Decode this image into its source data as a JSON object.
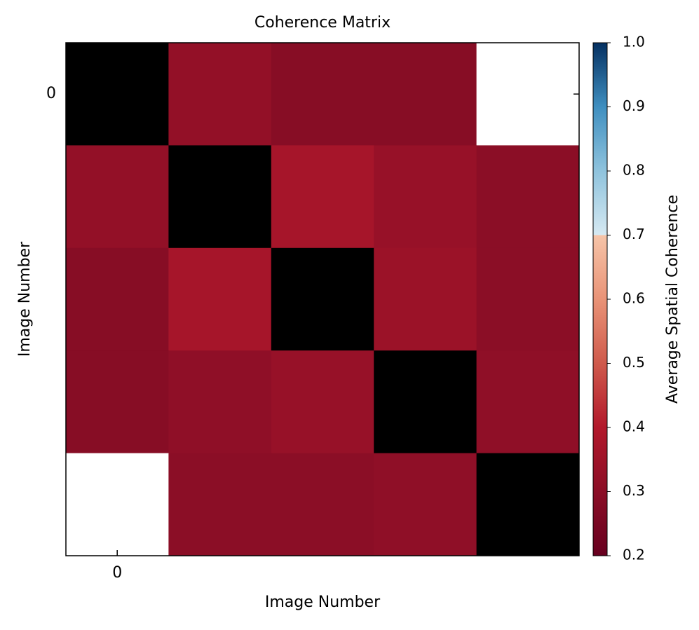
{
  "chart_data": {
    "type": "heatmap",
    "title": "Coherence Matrix",
    "x_label": "Image Number",
    "y_label": "Image Number",
    "colorbar_label": "Average Spatial Coherence",
    "values": [
      [
        null,
        0.32,
        0.29,
        0.29,
        null
      ],
      [
        0.32,
        null,
        0.37,
        0.33,
        0.3
      ],
      [
        0.29,
        0.37,
        null,
        0.34,
        0.3
      ],
      [
        0.29,
        0.31,
        0.33,
        null,
        0.31
      ],
      [
        null,
        0.3,
        0.3,
        0.31,
        null
      ]
    ],
    "xlim": [
      -0.5,
      4.5
    ],
    "ylim": [
      4.5,
      -0.5
    ],
    "xticks": [
      0
    ],
    "yticks": [
      0
    ],
    "clim": [
      0.2,
      1.0
    ],
    "cticks": [
      0.2,
      {
        "value": 0.3,
        "label": "0.3"
      },
      0.4,
      0.5,
      0.6,
      0.7,
      0.8,
      0.9,
      {
        "value": 1.0,
        "label": "1.0"
      }
    ],
    "diagonal_color": "#000000",
    "null_color": "#ffffff",
    "colorscale": [
      [
        0.2,
        "#67001f"
      ],
      [
        0.3,
        "#8b0e26"
      ],
      [
        0.4,
        "#b2182b"
      ],
      [
        0.5,
        "#cf5a4c"
      ],
      [
        0.6,
        "#e99377"
      ],
      [
        0.7,
        "#f6c4a8"
      ],
      [
        0.7,
        "#d6e9f2"
      ],
      [
        0.8,
        "#8fc3dd"
      ],
      [
        0.9,
        "#3f8fc0"
      ],
      [
        1.0,
        "#053061"
      ]
    ]
  }
}
